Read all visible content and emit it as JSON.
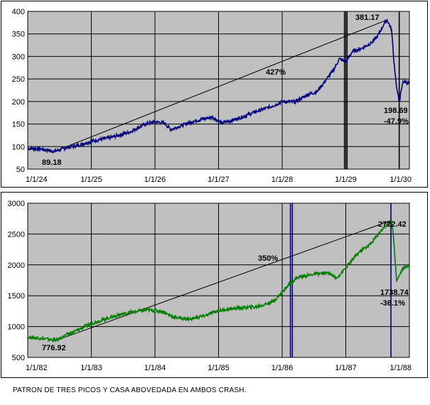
{
  "caption": "PATRON DE TRES PICOS Y CASA ABOVEDADA EN AMBOS CRASH.",
  "colors": {
    "plot_bg": "#c0c0c0",
    "series_top": "#000080",
    "series_bottom": "#008000",
    "top_vlines": "#000000",
    "bottom_vlines": "#000080"
  },
  "chart_data": [
    {
      "type": "line",
      "title": "",
      "xlabel": "",
      "ylabel": "",
      "x_tick_labels": [
        "1/1/24",
        "1/1/25",
        "1/1/26",
        "1/1/27",
        "1/1/28",
        "1/1/29",
        "1/1/30"
      ],
      "xlim": [
        1924.0,
        1930.0
      ],
      "y_tick_labels": [
        "50",
        "100",
        "150",
        "200",
        "250",
        "300",
        "350",
        "400"
      ],
      "ylim": [
        50,
        400
      ],
      "grid": true,
      "series": [
        {
          "color": "#000080",
          "x": [
            1924.0,
            1924.2,
            1924.42,
            1924.6,
            1924.8,
            1925.0,
            1925.3,
            1925.6,
            1925.85,
            1926.0,
            1926.15,
            1926.25,
            1926.35,
            1926.6,
            1926.9,
            1927.05,
            1927.3,
            1927.6,
            1927.85,
            1928.0,
            1928.2,
            1928.4,
            1928.55,
            1928.7,
            1928.8,
            1928.9,
            1929.0,
            1929.1,
            1929.25,
            1929.4,
            1929.5,
            1929.6,
            1929.65,
            1929.72,
            1929.75,
            1929.8,
            1929.84,
            1929.9,
            1930.0
          ],
          "y": [
            96,
            95,
            89.18,
            97,
            103,
            112,
            120,
            132,
            150,
            155,
            152,
            138,
            143,
            156,
            166,
            152,
            162,
            178,
            190,
            200,
            199,
            215,
            222,
            250,
            268,
            295,
            288,
            310,
            318,
            330,
            345,
            372,
            381.17,
            360,
            300,
            230,
            198.69,
            245,
            240
          ]
        }
      ],
      "vertical_lines_x": [
        1928.98,
        1929.02,
        1929.84
      ],
      "trend_line": {
        "from": [
          1924.42,
          89.18
        ],
        "to": [
          1929.65,
          381.17
        ],
        "label": "427%"
      },
      "annotations": {
        "low": "89.18",
        "peak": "381.17",
        "crash_low": "198.69",
        "crash_pct": "-47.9%"
      }
    },
    {
      "type": "line",
      "title": "",
      "xlabel": "",
      "ylabel": "",
      "x_tick_labels": [
        "1/1/82",
        "1/1/83",
        "1/1/84",
        "1/1/85",
        "1/1/86",
        "1/1/87",
        "1/1/88"
      ],
      "xlim": [
        1982.0,
        1988.0
      ],
      "y_tick_labels": [
        "500",
        "1000",
        "1500",
        "2000",
        "2500",
        "3000"
      ],
      "ylim": [
        500,
        3000
      ],
      "grid": true,
      "series": [
        {
          "color": "#008000",
          "x": [
            1982.0,
            1982.2,
            1982.45,
            1982.6,
            1982.8,
            1983.0,
            1983.3,
            1983.6,
            1983.9,
            1984.1,
            1984.3,
            1984.55,
            1984.8,
            1985.0,
            1985.3,
            1985.6,
            1985.85,
            1986.0,
            1986.1,
            1986.25,
            1986.5,
            1986.75,
            1986.85,
            1987.0,
            1987.2,
            1987.4,
            1987.55,
            1987.65,
            1987.72,
            1987.75,
            1987.8,
            1987.9,
            1988.0
          ],
          "y": [
            830,
            810,
            776.92,
            860,
            950,
            1050,
            1150,
            1230,
            1270,
            1250,
            1150,
            1120,
            1180,
            1260,
            1300,
            1320,
            1400,
            1550,
            1680,
            1800,
            1850,
            1870,
            1780,
            1950,
            2200,
            2350,
            2550,
            2650,
            2722.42,
            2450,
            1738.74,
            1950,
            1980
          ]
        }
      ],
      "vertical_lines_x": [
        1986.13,
        1986.16,
        1987.71
      ],
      "trend_line": {
        "from": [
          1982.45,
          776.92
        ],
        "to": [
          1987.72,
          2722.42
        ],
        "label": "350%"
      },
      "annotations": {
        "low": "776.92",
        "peak": "2722.42",
        "crash_low": "1738.74",
        "crash_pct": "-36.1%"
      }
    }
  ]
}
